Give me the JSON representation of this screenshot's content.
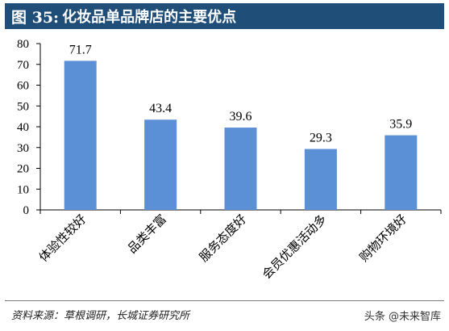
{
  "header": {
    "tag": "图 35:",
    "title": "化妆品单品牌店的主要优点"
  },
  "chart_data": {
    "type": "bar",
    "categories": [
      "体验性较好",
      "品类丰富",
      "服务态度好",
      "会员优惠活动多",
      "购物环境好"
    ],
    "values": [
      71.7,
      43.4,
      39.6,
      29.3,
      35.9
    ],
    "value_labels": [
      "71.7",
      "43.4",
      "39.6",
      "29.3",
      "35.9"
    ],
    "ylim": [
      0,
      80
    ],
    "yticks": [
      0,
      10,
      20,
      30,
      40,
      50,
      60,
      70,
      80
    ],
    "bar_color": "#5b8fd6",
    "grid": false,
    "title": "",
    "xlabel": "",
    "ylabel": ""
  },
  "footer": {
    "source": "资料来源：草根调研，长城证券研究所",
    "watermark": "头条 @未来智库"
  }
}
